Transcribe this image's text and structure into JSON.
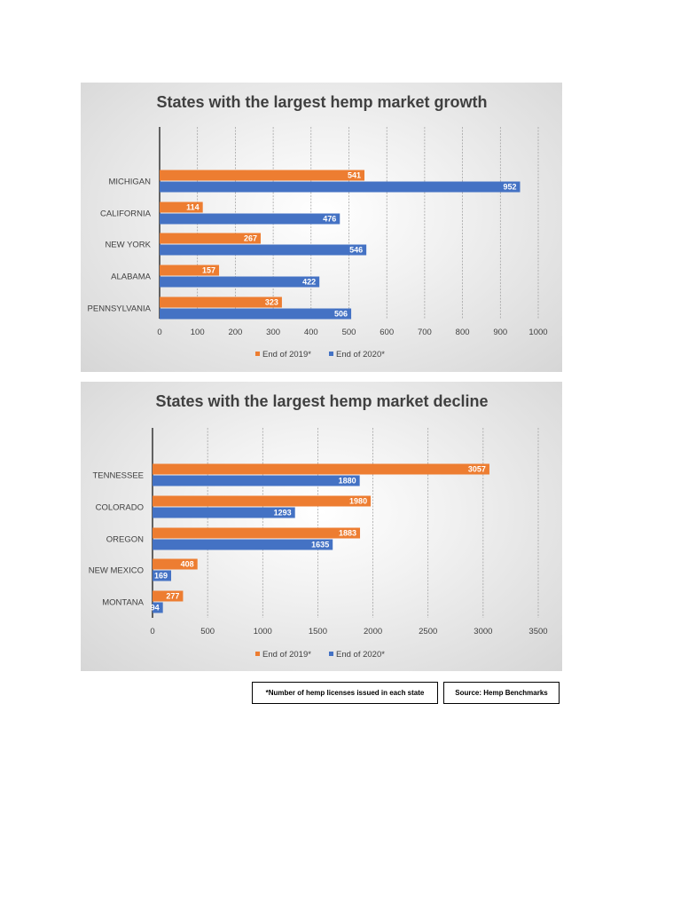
{
  "colors": {
    "series_2019": "#ED7D31",
    "series_2020": "#4472C4",
    "grid": "#9a9a9a",
    "axis": "#404040"
  },
  "chart_data": [
    {
      "type": "bar",
      "orientation": "horizontal",
      "title": "States with the largest hemp market growth",
      "categories": [
        "MICHIGAN",
        "CALIFORNIA",
        "NEW YORK",
        "ALABAMA",
        "PENNSYLVANIA"
      ],
      "series": [
        {
          "name": "End of 2019*",
          "values": [
            541,
            114,
            267,
            157,
            323
          ]
        },
        {
          "name": "End of 2020*",
          "values": [
            952,
            476,
            546,
            422,
            506
          ]
        }
      ],
      "xlim": [
        0,
        1000
      ],
      "xticks": [
        0,
        100,
        200,
        300,
        400,
        500,
        600,
        700,
        800,
        900,
        1000
      ],
      "grid": true,
      "legend": "bottom"
    },
    {
      "type": "bar",
      "orientation": "horizontal",
      "title": "States with the largest hemp market decline",
      "categories": [
        "TENNESSEE",
        "COLORADO",
        "OREGON",
        "NEW MEXICO",
        "MONTANA"
      ],
      "series": [
        {
          "name": "End of 2019*",
          "values": [
            3057,
            1980,
            1883,
            408,
            277
          ]
        },
        {
          "name": "End of 2020*",
          "values": [
            1880,
            1293,
            1635,
            169,
            94
          ]
        }
      ],
      "xlim": [
        0,
        3500
      ],
      "xticks": [
        0,
        500,
        1000,
        1500,
        2000,
        2500,
        3000,
        3500
      ],
      "grid": true,
      "legend": "bottom"
    }
  ],
  "notes": {
    "footnote": "*Number of hemp licenses issued in each state",
    "source": "Source: Hemp Benchmarks"
  }
}
